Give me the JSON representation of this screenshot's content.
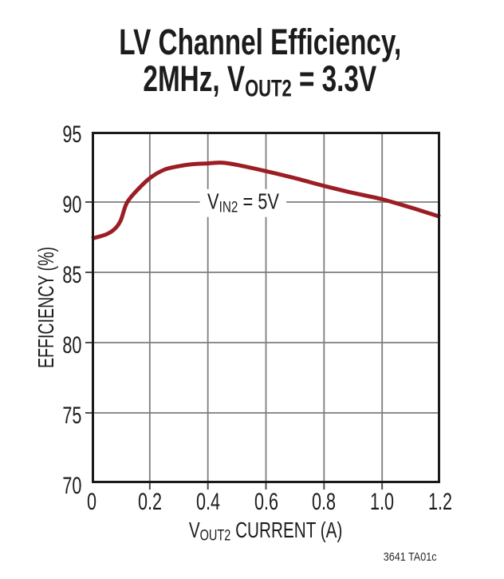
{
  "title": {
    "line1": "LV Channel Efficiency,",
    "line2_pre": "2MHz, V",
    "line2_sub": "OUT2",
    "line2_post": " = 3.3V"
  },
  "axis": {
    "xlabel_pre": "V",
    "xlabel_sub": "OUT2",
    "xlabel_post": " CURRENT (A)"
  },
  "footer_note": "3641 TA01c",
  "chart_data": {
    "type": "line",
    "title": "LV Channel Efficiency, 2MHz, VOUT2 = 3.3V",
    "xlabel": "VOUT2 CURRENT (A)",
    "ylabel": "EFFICIENCY (%)",
    "xlim": [
      0,
      1.2
    ],
    "ylim": [
      70,
      95
    ],
    "x_ticks": [
      0,
      0.2,
      0.4,
      0.6,
      0.8,
      1.0,
      1.2
    ],
    "x_tick_labels": [
      "0",
      "0.2",
      "0.4",
      "0.6",
      "0.8",
      "1.0",
      "1.2"
    ],
    "y_ticks": [
      95,
      90,
      85,
      80,
      75,
      70
    ],
    "y_tick_labels": [
      "95",
      "90",
      "85",
      "80",
      "75",
      "70"
    ],
    "grid": true,
    "legend_position": "none",
    "annotation": {
      "pre": "V",
      "sub": "IN2",
      "post": " = 5V",
      "text": "VIN2 = 5V"
    },
    "colors": {
      "curve": "#9b1e24",
      "grid": "#7d7d7d",
      "frame": "#1a1a1a"
    },
    "series": [
      {
        "name": "VIN2 = 5V",
        "color": "#9b1e24",
        "x": [
          0,
          0.05,
          0.08,
          0.1,
          0.12,
          0.15,
          0.2,
          0.25,
          0.3,
          0.35,
          0.4,
          0.45,
          0.5,
          0.6,
          0.7,
          0.8,
          0.9,
          1.0,
          1.1,
          1.2
        ],
        "y": [
          87.4,
          87.7,
          88.1,
          88.7,
          89.9,
          90.7,
          91.7,
          92.3,
          92.55,
          92.7,
          92.75,
          92.8,
          92.65,
          92.2,
          91.7,
          91.15,
          90.65,
          90.2,
          89.6,
          88.95
        ]
      }
    ]
  }
}
